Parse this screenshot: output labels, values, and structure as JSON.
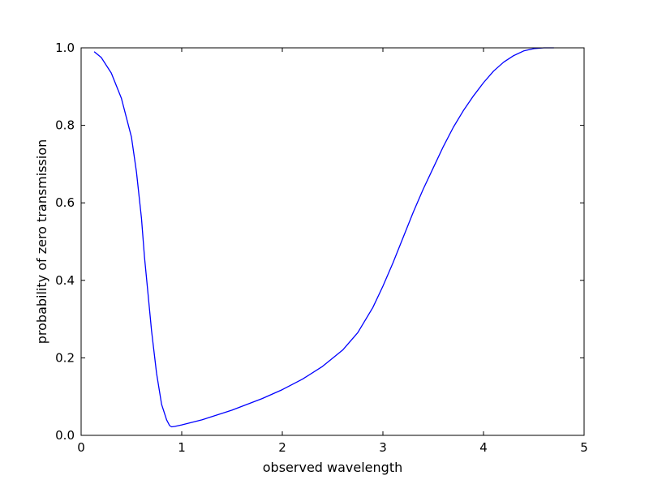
{
  "chart_data": {
    "type": "line",
    "title": "",
    "xlabel": "observed wavelength",
    "ylabel": "probability of zero transmission",
    "xlim": [
      0,
      5
    ],
    "ylim": [
      0,
      1.0
    ],
    "x_ticks": [
      "0",
      "1",
      "2",
      "3",
      "4",
      "5"
    ],
    "y_ticks": [
      "0.0",
      "0.2",
      "0.4",
      "0.6",
      "0.8",
      "1.0"
    ],
    "grid": false,
    "legend": "none",
    "series": [
      {
        "color": "#0000ff",
        "x": [
          0.13,
          0.2,
          0.3,
          0.4,
          0.5,
          0.55,
          0.6,
          0.63,
          0.66,
          0.7,
          0.75,
          0.8,
          0.85,
          0.88,
          0.9,
          0.93,
          1.0,
          1.2,
          1.5,
          1.8,
          2.0,
          2.2,
          2.4,
          2.6,
          2.75,
          2.9,
          3.0,
          3.1,
          3.2,
          3.3,
          3.4,
          3.5,
          3.6,
          3.7,
          3.8,
          3.9,
          4.0,
          4.1,
          4.2,
          4.3,
          4.4,
          4.5,
          4.6,
          4.65,
          4.7
        ],
        "y": [
          0.99,
          0.975,
          0.935,
          0.87,
          0.77,
          0.68,
          0.56,
          0.46,
          0.38,
          0.27,
          0.16,
          0.08,
          0.04,
          0.025,
          0.022,
          0.023,
          0.027,
          0.04,
          0.065,
          0.095,
          0.118,
          0.145,
          0.178,
          0.22,
          0.265,
          0.33,
          0.385,
          0.445,
          0.51,
          0.575,
          0.635,
          0.69,
          0.745,
          0.795,
          0.838,
          0.876,
          0.91,
          0.94,
          0.963,
          0.98,
          0.992,
          0.998,
          1.0,
          1.0,
          1.0
        ]
      }
    ]
  }
}
